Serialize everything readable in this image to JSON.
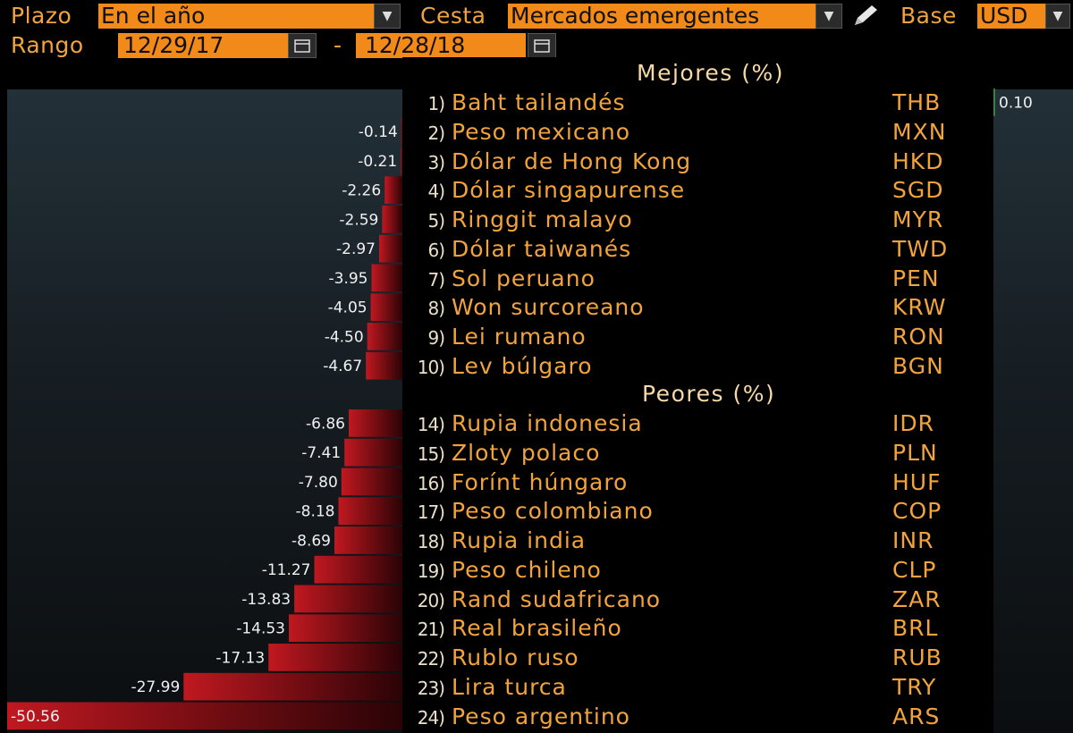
{
  "toolbar": {
    "plazo_label": "Plazo",
    "plazo_value": "En el año",
    "cesta_label": "Cesta",
    "cesta_value": "Mercados emergentes",
    "base_label": "Base",
    "base_value": "USD",
    "rango_label": "Rango",
    "start_date": "12/29/17",
    "range_separator": "-",
    "end_date": "12/28/18",
    "icons": [
      "chevron-down-icon",
      "pencil-icon",
      "calendar-icon"
    ]
  },
  "colors": {
    "accent": "#f2a33c",
    "field_bg": "#f28a1a",
    "bar_red": "#b0141c",
    "background": "#000000"
  },
  "chart_data": {
    "type": "bar",
    "orientation": "horizontal",
    "sections": [
      {
        "title": "Mejores (%)",
        "rows": [
          {
            "rank": "1)",
            "name": "Baht tailandés",
            "code": "THB",
            "value": 0.1
          },
          {
            "rank": "2)",
            "name": "Peso mexicano",
            "code": "MXN",
            "value": -0.14
          },
          {
            "rank": "3)",
            "name": "Dólar de Hong Kong",
            "code": "HKD",
            "value": -0.21
          },
          {
            "rank": "4)",
            "name": "Dólar singapurense",
            "code": "SGD",
            "value": -2.26
          },
          {
            "rank": "5)",
            "name": "Ringgit malayo",
            "code": "MYR",
            "value": -2.59
          },
          {
            "rank": "6)",
            "name": "Dólar taiwanés",
            "code": "TWD",
            "value": -2.97
          },
          {
            "rank": "7)",
            "name": "Sol peruano",
            "code": "PEN",
            "value": -3.95
          },
          {
            "rank": "8)",
            "name": "Won surcoreano",
            "code": "KRW",
            "value": -4.05
          },
          {
            "rank": "9)",
            "name": "Lei rumano",
            "code": "RON",
            "value": -4.5
          },
          {
            "rank": "10)",
            "name": "Lev búlgaro",
            "code": "BGN",
            "value": -4.67
          }
        ]
      },
      {
        "title": "Peores (%)",
        "rows": [
          {
            "rank": "14)",
            "name": "Rupia indonesia",
            "code": "IDR",
            "value": -6.86
          },
          {
            "rank": "15)",
            "name": "Zloty polaco",
            "code": "PLN",
            "value": -7.41
          },
          {
            "rank": "16)",
            "name": "Forínt húngaro",
            "code": "HUF",
            "value": -7.8
          },
          {
            "rank": "17)",
            "name": "Peso colombiano",
            "code": "COP",
            "value": -8.18
          },
          {
            "rank": "18)",
            "name": "Rupia india",
            "code": "INR",
            "value": -8.69
          },
          {
            "rank": "19)",
            "name": "Peso chileno",
            "code": "CLP",
            "value": -11.27
          },
          {
            "rank": "20)",
            "name": "Rand sudafricano",
            "code": "ZAR",
            "value": -13.83
          },
          {
            "rank": "21)",
            "name": "Real brasileño",
            "code": "BRL",
            "value": -14.53
          },
          {
            "rank": "22)",
            "name": "Rublo ruso",
            "code": "RUB",
            "value": -17.13
          },
          {
            "rank": "23)",
            "name": "Lira turca",
            "code": "TRY",
            "value": -27.99
          },
          {
            "rank": "24)",
            "name": "Peso argentino",
            "code": "ARS",
            "value": -50.56
          }
        ]
      }
    ],
    "xlim": [
      -50.56,
      0.1
    ]
  }
}
